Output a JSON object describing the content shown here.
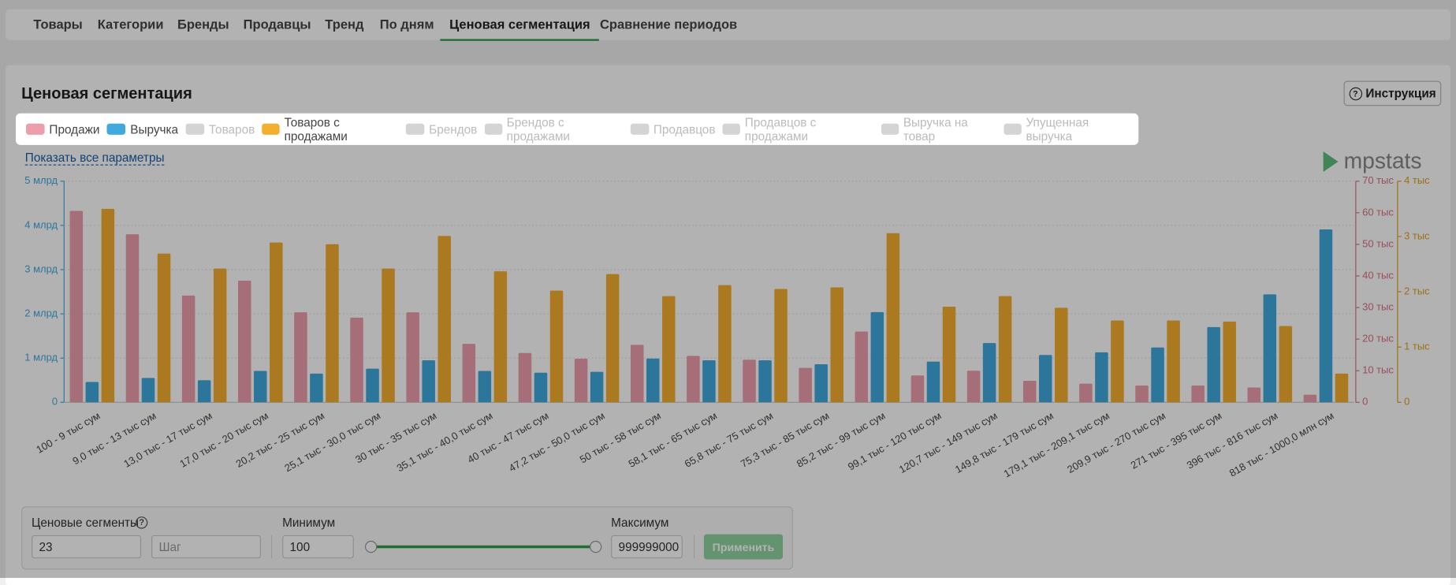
{
  "tabs": [
    {
      "label": "Товары"
    },
    {
      "label": "Категории"
    },
    {
      "label": "Бренды"
    },
    {
      "label": "Продавцы"
    },
    {
      "label": "Тренд"
    },
    {
      "label": "По дням"
    },
    {
      "label": "Ценовая сегментация",
      "active": true
    },
    {
      "label": "Сравнение периодов"
    }
  ],
  "panel": {
    "title": "Ценовая сегментация",
    "help_button": "Инструкция",
    "show_all_link": "Показать все параметры",
    "logo": "mpstats"
  },
  "chart_data": {
    "type": "bar",
    "categories": [
      "100 - 9 тыс сум",
      "9,0 тыс - 13 тыс сум",
      "13,0 тыс - 17 тыс сум",
      "17,0 тыс - 20 тыс сум",
      "20,2 тыс - 25 тыс сум",
      "25,1 тыс - 30,0 тыс сум",
      "30 тыс - 35 тыс сум",
      "35,1 тыс - 40,0 тыс сум",
      "40 тыс - 47 тыс сум",
      "47,2 тыс - 50,0 тыс сум",
      "50 тыс - 58 тыс сум",
      "58,1 тыс - 65 тыс сум",
      "65,8 тыс - 75 тыс сум",
      "75,3 тыс - 85 тыс сум",
      "85,2 тыс - 99 тыс сум",
      "99,1 тыс - 120 тыс сум",
      "120,7 тыс - 149 тыс сум",
      "149,8 тыс - 179 тыс сум",
      "179,1 тыс - 209,1 тыс сум",
      "209,9 тыс - 270 тыс сум",
      "271 тыс - 395 тыс сум",
      "396 тыс - 816 тыс сум",
      "818 тыс - 1000,0 млн сум"
    ],
    "series": [
      {
        "name": "Продажи",
        "color": "#ec9eac",
        "axis": "y2",
        "values": [
          60.6,
          53.2,
          33.8,
          38.5,
          28.5,
          26.8,
          28.5,
          18.5,
          15.6,
          13.8,
          18.2,
          14.7,
          13.5,
          10.9,
          22.4,
          8.5,
          10,
          6.8,
          5.9,
          5.3,
          5.3,
          4.7,
          2.4
        ]
      },
      {
        "name": "Выручка",
        "color": "#3fa9e0",
        "axis": "y",
        "values": [
          0.46,
          0.55,
          0.5,
          0.71,
          0.65,
          0.76,
          0.95,
          0.71,
          0.67,
          0.69,
          0.99,
          0.95,
          0.95,
          0.86,
          2.04,
          0.92,
          1.34,
          1.07,
          1.13,
          1.24,
          1.7,
          2.44,
          3.91
        ]
      },
      {
        "name": "Товаров",
        "color": "#d4d4d4",
        "visible": false
      },
      {
        "name": "Товаров с продажами",
        "color": "#f5ae2e",
        "axis": "y3",
        "values": [
          3.5,
          2.69,
          2.42,
          2.89,
          2.86,
          2.42,
          3.01,
          2.37,
          2.02,
          2.32,
          1.92,
          2.12,
          2.05,
          2.08,
          3.06,
          1.73,
          1.92,
          1.71,
          1.48,
          1.48,
          1.46,
          1.38,
          0.52
        ]
      },
      {
        "name": "Брендов",
        "color": "#d4d4d4",
        "visible": false
      },
      {
        "name": "Брендов с продажами",
        "color": "#d4d4d4",
        "visible": false
      },
      {
        "name": "Продавцов",
        "color": "#d4d4d4",
        "visible": false
      },
      {
        "name": "Продавцов с продажами",
        "color": "#d4d4d4",
        "visible": false
      },
      {
        "name": "Выручка на товар",
        "color": "#d4d4d4",
        "visible": false
      },
      {
        "name": "Упущенная выручка",
        "color": "#d4d4d4",
        "visible": false
      }
    ],
    "ylim": [
      0,
      5
    ],
    "yticks": [
      0,
      {
        "value": 1,
        "label": "1 млрд"
      },
      {
        "value": 2,
        "label": "2 млрд"
      },
      {
        "value": 3,
        "label": "3 млрд"
      },
      {
        "value": 4,
        "label": "4 млрд"
      },
      {
        "value": 5,
        "label": "5 млрд"
      }
    ],
    "y2lim": [
      0,
      70
    ],
    "y2ticks": [
      0,
      {
        "value": 10,
        "label": "10 тыс"
      },
      {
        "value": 20,
        "label": "20 тыс"
      },
      {
        "value": 30,
        "label": "30 тыс"
      },
      {
        "value": 40,
        "label": "40 тыс"
      },
      {
        "value": 50,
        "label": "50 тыс"
      },
      {
        "value": 60,
        "label": "60 тыс"
      },
      {
        "value": 70,
        "label": "70 тыс"
      }
    ],
    "y3lim": [
      0,
      4
    ],
    "y3ticks": [
      0,
      {
        "value": 1,
        "label": "1 тыс"
      },
      {
        "value": 2,
        "label": "2 тыс"
      },
      {
        "value": 3,
        "label": "3 тыс"
      },
      {
        "value": 4,
        "label": "4 тыс"
      }
    ],
    "grid": true
  },
  "controls": {
    "segments_label": "Ценовые сегменты",
    "segments_value": "23",
    "step_placeholder": "Шаг",
    "min_label": "Минимум",
    "min_value": "100",
    "max_label": "Максимум",
    "max_value": "999999000",
    "apply": "Применить"
  }
}
